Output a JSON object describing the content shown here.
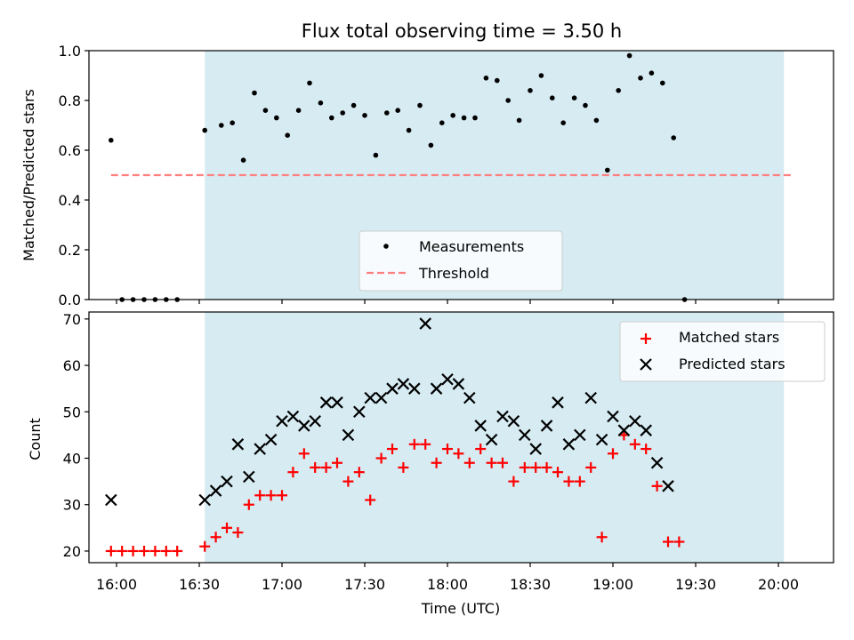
{
  "chart_data": [
    {
      "type": "scatter",
      "title": "Flux total observing time = 3.50 h",
      "xlabel": "",
      "ylabel": "Matched/Predicted stars",
      "xlim": [
        "15:50",
        "20:20"
      ],
      "ylim": [
        0.0,
        1.0
      ],
      "yticks": [
        "0.0",
        "0.2",
        "0.4",
        "0.6",
        "0.8",
        "1.0"
      ],
      "shaded_span": {
        "start": "16:32",
        "end": "20:02",
        "color": "#add8e6"
      },
      "legend": {
        "position": "bottom-center",
        "entries": [
          "Measurements",
          "Threshold"
        ]
      },
      "series": [
        {
          "name": "Measurements",
          "marker": "dot",
          "color": "#000000",
          "points": [
            [
              "15:58",
              0.64
            ],
            [
              "16:02",
              0.0
            ],
            [
              "16:06",
              0.0
            ],
            [
              "16:10",
              0.0
            ],
            [
              "16:14",
              0.0
            ],
            [
              "16:18",
              0.0
            ],
            [
              "16:22",
              0.0
            ],
            [
              "16:32",
              0.68
            ],
            [
              "16:38",
              0.7
            ],
            [
              "16:42",
              0.71
            ],
            [
              "16:46",
              0.56
            ],
            [
              "16:50",
              0.83
            ],
            [
              "16:54",
              0.76
            ],
            [
              "16:58",
              0.73
            ],
            [
              "17:02",
              0.66
            ],
            [
              "17:06",
              0.76
            ],
            [
              "17:10",
              0.87
            ],
            [
              "17:14",
              0.79
            ],
            [
              "17:18",
              0.73
            ],
            [
              "17:22",
              0.75
            ],
            [
              "17:26",
              0.78
            ],
            [
              "17:30",
              0.74
            ],
            [
              "17:34",
              0.58
            ],
            [
              "17:38",
              0.75
            ],
            [
              "17:42",
              0.76
            ],
            [
              "17:46",
              0.68
            ],
            [
              "17:50",
              0.78
            ],
            [
              "17:54",
              0.62
            ],
            [
              "17:58",
              0.71
            ],
            [
              "18:02",
              0.74
            ],
            [
              "18:06",
              0.73
            ],
            [
              "18:10",
              0.73
            ],
            [
              "18:14",
              0.89
            ],
            [
              "18:18",
              0.88
            ],
            [
              "18:22",
              0.8
            ],
            [
              "18:26",
              0.72
            ],
            [
              "18:30",
              0.84
            ],
            [
              "18:34",
              0.9
            ],
            [
              "18:38",
              0.81
            ],
            [
              "18:42",
              0.71
            ],
            [
              "18:46",
              0.81
            ],
            [
              "18:50",
              0.78
            ],
            [
              "18:54",
              0.72
            ],
            [
              "18:58",
              0.52
            ],
            [
              "19:02",
              0.84
            ],
            [
              "19:06",
              0.98
            ],
            [
              "19:10",
              0.89
            ],
            [
              "19:14",
              0.91
            ],
            [
              "19:18",
              0.87
            ],
            [
              "19:22",
              0.65
            ],
            [
              "19:26",
              0.0
            ]
          ]
        },
        {
          "name": "Threshold",
          "line": "dashed",
          "color": "#ff8080",
          "points": [
            [
              "15:58",
              0.5
            ],
            [
              "20:05",
              0.5
            ]
          ]
        }
      ]
    },
    {
      "type": "scatter",
      "title": "",
      "xlabel": "Time (UTC)",
      "ylabel": "Count",
      "xlim": [
        "15:50",
        "20:20"
      ],
      "ylim": [
        17.5,
        71.5
      ],
      "yticks": [
        "20",
        "30",
        "40",
        "50",
        "60",
        "70"
      ],
      "xticks": [
        "16:00",
        "16:30",
        "17:00",
        "17:30",
        "18:00",
        "18:30",
        "19:00",
        "19:30",
        "20:00"
      ],
      "shaded_span": {
        "start": "16:32",
        "end": "20:02",
        "color": "#add8e6"
      },
      "legend": {
        "position": "top-right",
        "entries": [
          "Matched stars",
          "Predicted stars"
        ]
      },
      "series": [
        {
          "name": "Matched stars",
          "marker": "plus",
          "color": "#ff0000",
          "points": [
            [
              "15:58",
              20
            ],
            [
              "16:02",
              20
            ],
            [
              "16:06",
              20
            ],
            [
              "16:10",
              20
            ],
            [
              "16:14",
              20
            ],
            [
              "16:18",
              20
            ],
            [
              "16:22",
              20
            ],
            [
              "16:32",
              21
            ],
            [
              "16:36",
              23
            ],
            [
              "16:40",
              25
            ],
            [
              "16:44",
              24
            ],
            [
              "16:48",
              30
            ],
            [
              "16:52",
              32
            ],
            [
              "16:56",
              32
            ],
            [
              "17:00",
              32
            ],
            [
              "17:04",
              37
            ],
            [
              "17:08",
              41
            ],
            [
              "17:12",
              38
            ],
            [
              "17:16",
              38
            ],
            [
              "17:20",
              39
            ],
            [
              "17:24",
              35
            ],
            [
              "17:28",
              37
            ],
            [
              "17:32",
              31
            ],
            [
              "17:36",
              40
            ],
            [
              "17:40",
              42
            ],
            [
              "17:44",
              38
            ],
            [
              "17:48",
              43
            ],
            [
              "17:52",
              43
            ],
            [
              "17:56",
              39
            ],
            [
              "18:00",
              42
            ],
            [
              "18:04",
              41
            ],
            [
              "18:08",
              39
            ],
            [
              "18:12",
              42
            ],
            [
              "18:16",
              39
            ],
            [
              "18:20",
              39
            ],
            [
              "18:24",
              35
            ],
            [
              "18:28",
              38
            ],
            [
              "18:32",
              38
            ],
            [
              "18:36",
              38
            ],
            [
              "18:40",
              37
            ],
            [
              "18:44",
              35
            ],
            [
              "18:48",
              35
            ],
            [
              "18:52",
              38
            ],
            [
              "18:56",
              23
            ],
            [
              "19:00",
              41
            ],
            [
              "19:04",
              45
            ],
            [
              "19:08",
              43
            ],
            [
              "19:12",
              42
            ],
            [
              "19:16",
              34
            ],
            [
              "19:20",
              22
            ],
            [
              "19:24",
              22
            ]
          ]
        },
        {
          "name": "Predicted stars",
          "marker": "x",
          "color": "#000000",
          "points": [
            [
              "15:58",
              31
            ],
            [
              "16:32",
              31
            ],
            [
              "16:36",
              33
            ],
            [
              "16:40",
              35
            ],
            [
              "16:44",
              43
            ],
            [
              "16:48",
              36
            ],
            [
              "16:52",
              42
            ],
            [
              "16:56",
              44
            ],
            [
              "17:00",
              48
            ],
            [
              "17:04",
              49
            ],
            [
              "17:08",
              47
            ],
            [
              "17:12",
              48
            ],
            [
              "17:16",
              52
            ],
            [
              "17:20",
              52
            ],
            [
              "17:24",
              45
            ],
            [
              "17:28",
              50
            ],
            [
              "17:32",
              53
            ],
            [
              "17:36",
              53
            ],
            [
              "17:40",
              55
            ],
            [
              "17:44",
              56
            ],
            [
              "17:48",
              55
            ],
            [
              "17:52",
              69
            ],
            [
              "17:56",
              55
            ],
            [
              "18:00",
              57
            ],
            [
              "18:04",
              56
            ],
            [
              "18:08",
              53
            ],
            [
              "18:12",
              47
            ],
            [
              "18:16",
              44
            ],
            [
              "18:20",
              49
            ],
            [
              "18:24",
              48
            ],
            [
              "18:28",
              45
            ],
            [
              "18:32",
              42
            ],
            [
              "18:36",
              47
            ],
            [
              "18:40",
              52
            ],
            [
              "18:44",
              43
            ],
            [
              "18:48",
              45
            ],
            [
              "18:52",
              53
            ],
            [
              "18:56",
              44
            ],
            [
              "19:00",
              49
            ],
            [
              "19:04",
              46
            ],
            [
              "19:08",
              48
            ],
            [
              "19:12",
              46
            ],
            [
              "19:16",
              39
            ],
            [
              "19:20",
              34
            ]
          ]
        }
      ]
    }
  ]
}
